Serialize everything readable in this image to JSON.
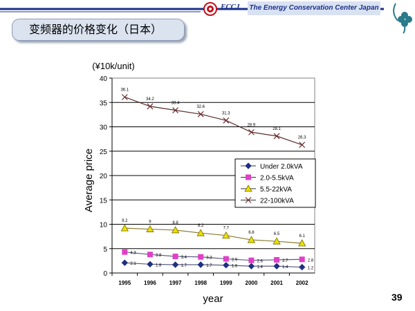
{
  "header": {
    "title": "变频器的价格变化（日本）",
    "org_abbrev": "ECCJ",
    "org_name": "The Energy Conservation Center Japan"
  },
  "footer": {
    "page_number": "39"
  },
  "colors": {
    "header_bar": "#1a2f8a",
    "series": [
      "#1f2f80",
      "#e040c8",
      "#e8e000",
      "#6a2a2a"
    ]
  },
  "chart_data": {
    "type": "line",
    "title": "",
    "unit_label": "(¥10k/unit)",
    "xlabel": "year",
    "ylabel": "Average price",
    "x": [
      1995,
      1996,
      1997,
      1998,
      1999,
      2000,
      2001,
      2002
    ],
    "ylim": [
      0,
      40
    ],
    "yticks": [
      0,
      5,
      10,
      15,
      20,
      25,
      30,
      35,
      40
    ],
    "grid": "horizontal",
    "legend_position": "right",
    "series": [
      {
        "name": "Under 2.0kVA",
        "marker": "diamond",
        "values": [
          2.1,
          1.8,
          1.7,
          1.7,
          1.6,
          1.4,
          1.4,
          1.2
        ]
      },
      {
        "name": "2.0-5.5kVA",
        "marker": "square",
        "values": [
          4.3,
          3.8,
          3.4,
          3.3,
          2.9,
          2.6,
          2.7,
          2.8
        ]
      },
      {
        "name": "5.5-22kVA",
        "marker": "triangle",
        "values": [
          9.2,
          9,
          8.8,
          8.2,
          7.7,
          6.8,
          6.5,
          6.1
        ]
      },
      {
        "name": "22-100kVA",
        "marker": "x",
        "values": [
          36.1,
          34.2,
          33.4,
          32.6,
          31.3,
          28.9,
          28.1,
          26.3
        ]
      }
    ]
  }
}
